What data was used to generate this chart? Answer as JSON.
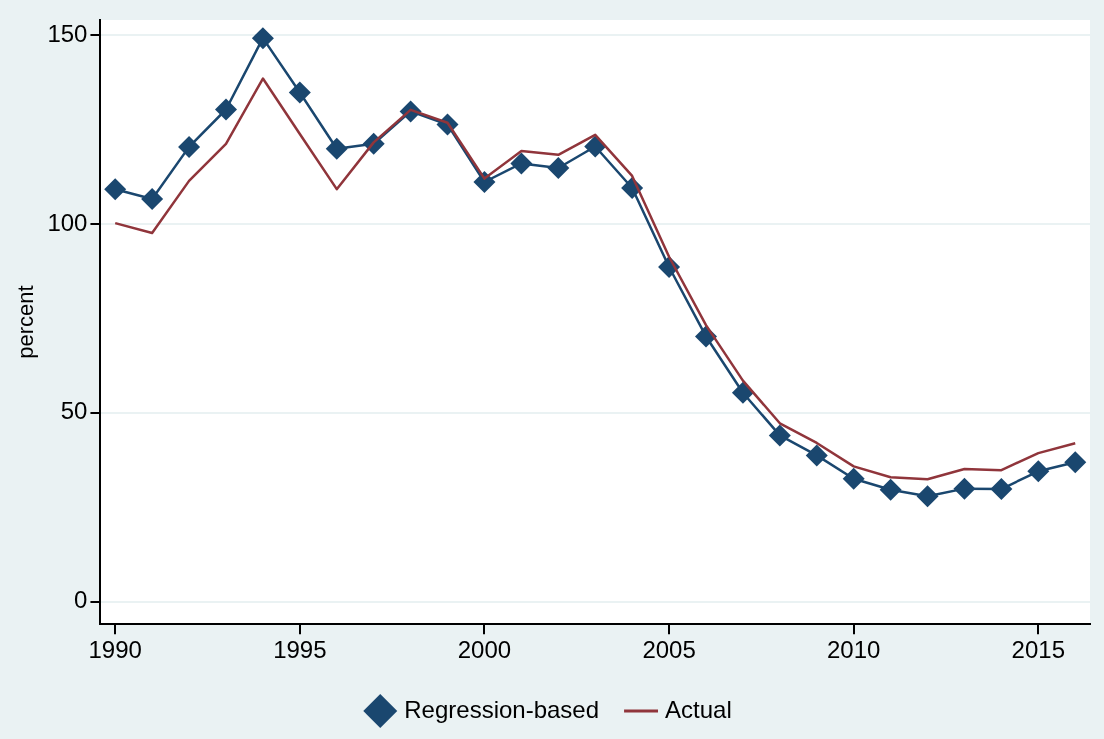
{
  "chart_data": {
    "type": "line",
    "ylabel": "percent",
    "x": [
      1990,
      1991,
      1992,
      1993,
      1994,
      1995,
      1996,
      1997,
      1998,
      1999,
      2000,
      2001,
      2002,
      2003,
      2004,
      2005,
      2006,
      2007,
      2008,
      2009,
      2010,
      2011,
      2012,
      2013,
      2014,
      2015,
      2016
    ],
    "series": [
      {
        "name": "Regression-based",
        "color": "#1a476f",
        "marker": "diamond",
        "values": [
          109.2,
          106.6,
          120.4,
          130.3,
          149.2,
          134.8,
          119.9,
          121.2,
          129.8,
          126.3,
          111.1,
          116.0,
          114.8,
          120.5,
          109.5,
          88.6,
          70.2,
          55.3,
          44.0,
          38.7,
          32.5,
          29.6,
          27.9,
          29.9,
          29.8,
          34.5,
          36.9
        ]
      },
      {
        "name": "Actual",
        "color": "#90353b",
        "marker": "none",
        "values": [
          100.2,
          97.6,
          111.4,
          121.2,
          138.5,
          123.8,
          109.2,
          121.6,
          130.2,
          126.8,
          112.0,
          119.3,
          118.3,
          123.6,
          112.7,
          91.3,
          73.2,
          58.5,
          47.2,
          42.0,
          35.8,
          32.9,
          32.4,
          35.1,
          34.8,
          39.3,
          41.9
        ]
      }
    ],
    "xlim": [
      1989.6,
      2016.4
    ],
    "xticks": [
      1990,
      1995,
      2000,
      2005,
      2010,
      2015
    ],
    "ylim": [
      -6,
      154
    ],
    "yticks": [
      0,
      50,
      100,
      150
    ],
    "grid": "y",
    "legend": "bottom",
    "line_style": "solid"
  }
}
